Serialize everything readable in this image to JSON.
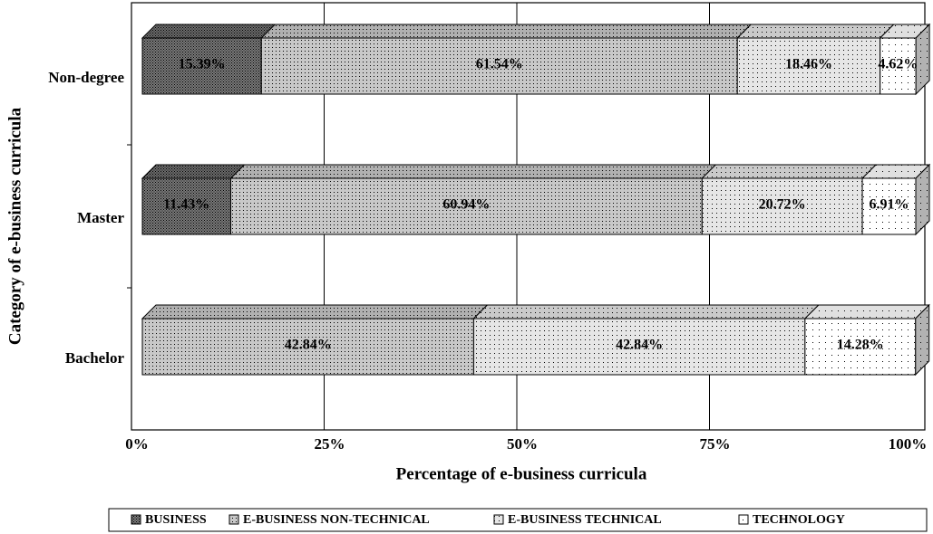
{
  "chart_data": {
    "type": "bar",
    "orientation": "horizontal",
    "stacked": true,
    "xlabel": "Percentage of e-business curricula",
    "ylabel": "Category of e-business curricula",
    "categories": [
      "Bachelor",
      "Master",
      "Non-degree"
    ],
    "series": [
      {
        "name": "BUSINESS",
        "color": "#7a7a7a",
        "values": [
          null,
          11.43,
          15.39
        ],
        "value_labels": [
          null,
          "11.43%",
          "15.39%"
        ]
      },
      {
        "name": "E-BUSINESS NON-TECHNICAL",
        "color": "#c8c8c8",
        "values": [
          42.84,
          60.94,
          61.54
        ],
        "value_labels": [
          "42.84%",
          "60.94%",
          "61.54%"
        ]
      },
      {
        "name": "E-BUSINESS TECHNICAL",
        "color": "#e6e6e6",
        "values": [
          42.84,
          20.72,
          18.46
        ],
        "value_labels": [
          "42.84%",
          "20.72%",
          "18.46%"
        ]
      },
      {
        "name": "TECHNOLOGY",
        "color": "#ffffff",
        "values": [
          14.28,
          6.91,
          4.62
        ],
        "value_labels": [
          "14.28%",
          "6.91%",
          "4.62%"
        ]
      }
    ],
    "xlim": [
      0,
      100
    ],
    "xticks": [
      {
        "value": 0,
        "label": "0%"
      },
      {
        "value": 25,
        "label": "25%"
      },
      {
        "value": 50,
        "label": "50%"
      },
      {
        "value": 75,
        "label": "75%"
      },
      {
        "value": 100,
        "label": "100%"
      }
    ],
    "grid": true,
    "legend": "bottom"
  }
}
